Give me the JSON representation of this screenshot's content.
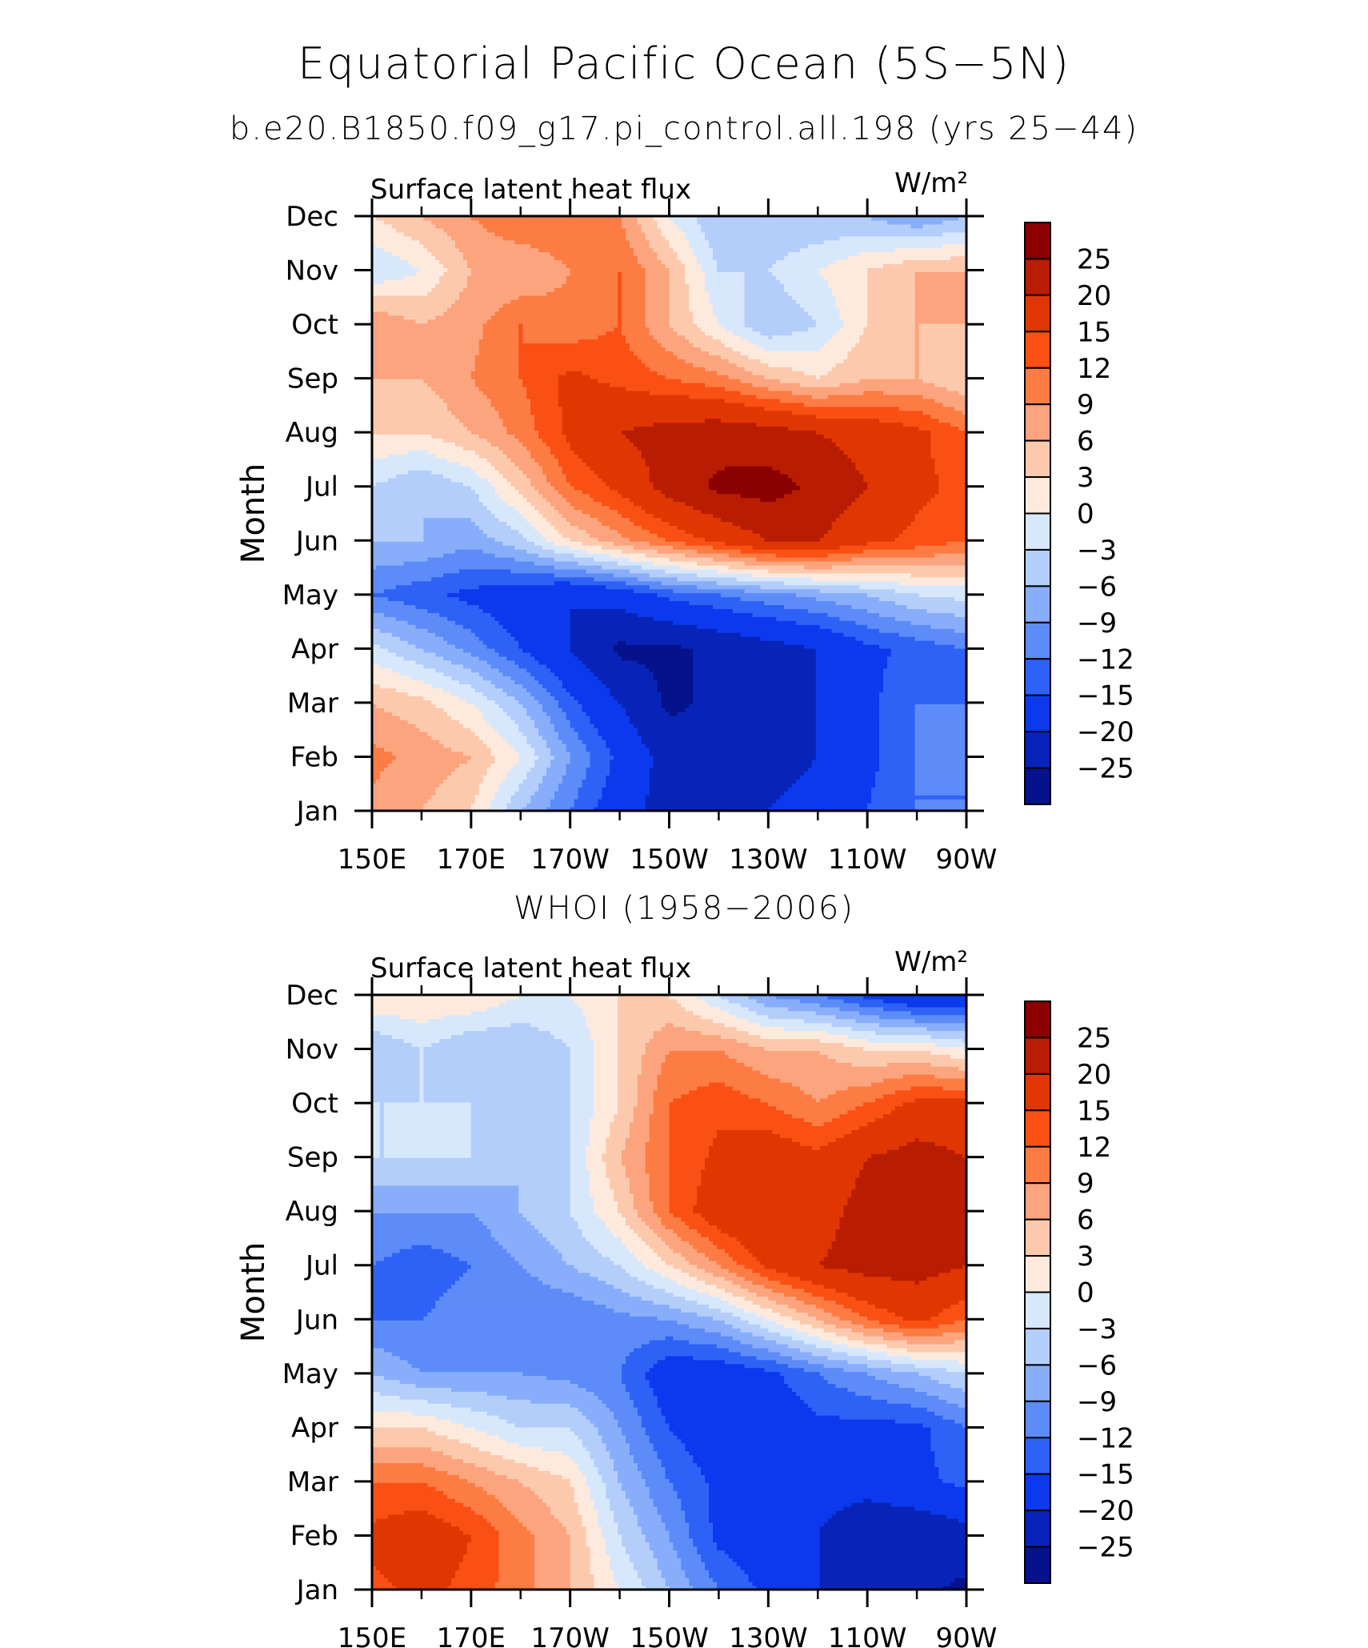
{
  "header": {
    "title": "Equatorial Pacific Ocean (5S−5N)",
    "subtitle": "b.e20.B1850.f09_g17.pi_control.all.198 (yrs 25−44)"
  },
  "chart_data": [
    {
      "type": "heatmap",
      "title": "",
      "left_label": "Surface latent heat flux",
      "right_label": "W/m²",
      "xlabel": "",
      "ylabel": "Month",
      "x_ticks": [
        "150E",
        "170E",
        "170W",
        "150W",
        "130W",
        "110W",
        "90W"
      ],
      "x_range": [
        150,
        270
      ],
      "y_ticks": [
        "Jan",
        "Feb",
        "Mar",
        "Apr",
        "May",
        "Jun",
        "Jul",
        "Aug",
        "Sep",
        "Oct",
        "Nov",
        "Dec"
      ],
      "colorbar_levels": [
        "25",
        "20",
        "15",
        "12",
        "9",
        "6",
        "3",
        "0",
        "−3",
        "−6",
        "−9",
        "−12",
        "−15",
        "−20",
        "−25"
      ],
      "colors": [
        "#8b0000",
        "#b81d02",
        "#e03602",
        "#fa5014",
        "#fc7c43",
        "#fca47e",
        "#fdc9ad",
        "#fdeadd",
        "#d8e8fc",
        "#b4cefc",
        "#88aefb",
        "#5d8cf9",
        "#2e62f6",
        "#0c39ee",
        "#0824b8",
        "#05128c"
      ],
      "x": [
        150,
        160,
        170,
        180,
        190,
        200,
        210,
        220,
        230,
        240,
        250,
        260,
        270
      ],
      "z": [
        [
          8,
          6,
          3,
          -6,
          -12,
          -18,
          -22,
          -22,
          -20,
          -18,
          -15,
          -12,
          -12
        ],
        [
          10,
          8,
          6,
          0,
          -9,
          -16,
          -22,
          -24,
          -22,
          -20,
          -16,
          -12,
          -12
        ],
        [
          6,
          4,
          0,
          -6,
          -14,
          -20,
          -26,
          -24,
          -22,
          -20,
          -16,
          -12,
          -12
        ],
        [
          -2,
          -6,
          -10,
          -15,
          -20,
          -26,
          -26,
          -24,
          -22,
          -20,
          -16,
          -14,
          -12
        ],
        [
          -12,
          -14,
          -16,
          -18,
          -20,
          -18,
          -14,
          -12,
          -10,
          -8,
          -6,
          -3,
          -2
        ],
        [
          -6,
          -6,
          -8,
          -4,
          3,
          8,
          12,
          16,
          20,
          20,
          16,
          14,
          12
        ],
        [
          -3,
          -6,
          -3,
          4,
          12,
          16,
          22,
          26,
          27,
          24,
          20,
          16,
          14
        ],
        [
          3,
          3,
          6,
          10,
          16,
          20,
          22,
          23,
          22,
          20,
          18,
          16,
          12
        ],
        [
          6,
          6,
          9,
          12,
          16,
          14,
          12,
          10,
          6,
          3,
          6,
          6,
          3
        ],
        [
          9,
          6,
          8,
          12,
          10,
          12,
          6,
          0,
          -6,
          -3,
          3,
          6,
          6
        ],
        [
          -3,
          0,
          6,
          6,
          9,
          12,
          6,
          -3,
          -3,
          0,
          3,
          6,
          6
        ],
        [
          3,
          6,
          9,
          12,
          12,
          9,
          0,
          -6,
          -6,
          -6,
          -6,
          -9,
          -6
        ]
      ]
    },
    {
      "type": "heatmap",
      "title": "WHOI (1958−2006)",
      "left_label": "Surface latent heat flux",
      "right_label": "W/m²",
      "xlabel": "",
      "ylabel": "Month",
      "x_ticks": [
        "150E",
        "170E",
        "170W",
        "150W",
        "130W",
        "110W",
        "90W"
      ],
      "x_range": [
        150,
        270
      ],
      "y_ticks": [
        "Jan",
        "Feb",
        "Mar",
        "Apr",
        "May",
        "Jun",
        "Jul",
        "Aug",
        "Sep",
        "Oct",
        "Nov",
        "Dec"
      ],
      "colorbar_levels": [
        "25",
        "20",
        "15",
        "12",
        "9",
        "6",
        "3",
        "0",
        "−3",
        "−6",
        "−9",
        "−12",
        "−15",
        "−20",
        "−25"
      ],
      "colors": [
        "#8b0000",
        "#b81d02",
        "#e03602",
        "#fa5014",
        "#fc7c43",
        "#fca47e",
        "#fdc9ad",
        "#fdeadd",
        "#d8e8fc",
        "#b4cefc",
        "#88aefb",
        "#5d8cf9",
        "#2e62f6",
        "#0c39ee",
        "#0824b8",
        "#05128c"
      ],
      "x": [
        150,
        160,
        170,
        180,
        190,
        200,
        210,
        220,
        230,
        240,
        250,
        260,
        270
      ],
      "z": [
        [
          14,
          16,
          14,
          10,
          6,
          0,
          -6,
          -12,
          -16,
          -20,
          -22,
          -24,
          -26
        ],
        [
          16,
          18,
          15,
          10,
          6,
          -3,
          -9,
          -16,
          -18,
          -20,
          -24,
          -24,
          -22
        ],
        [
          12,
          12,
          9,
          6,
          3,
          -6,
          -12,
          -16,
          -18,
          -18,
          -18,
          -16,
          -14
        ],
        [
          3,
          3,
          0,
          -3,
          -3,
          -9,
          -15,
          -18,
          -18,
          -16,
          -16,
          -16,
          -12
        ],
        [
          -6,
          -9,
          -9,
          -9,
          -10,
          -12,
          -18,
          -18,
          -16,
          -12,
          -9,
          -6,
          -3
        ],
        [
          -12,
          -12,
          -10,
          -12,
          -12,
          -10,
          -9,
          -6,
          0,
          6,
          12,
          16,
          12
        ],
        [
          -12,
          -14,
          -12,
          -9,
          -6,
          -3,
          3,
          9,
          16,
          20,
          22,
          22,
          20
        ],
        [
          -9,
          -9,
          -9,
          -6,
          -3,
          3,
          12,
          18,
          20,
          18,
          22,
          22,
          20
        ],
        [
          -3,
          -3,
          -3,
          -6,
          -3,
          6,
          12,
          16,
          18,
          16,
          20,
          22,
          20
        ],
        [
          -3,
          -3,
          -3,
          -6,
          -3,
          3,
          12,
          14,
          12,
          9,
          12,
          16,
          16
        ],
        [
          -6,
          -3,
          -6,
          -6,
          -3,
          3,
          9,
          9,
          6,
          6,
          3,
          3,
          0
        ],
        [
          3,
          3,
          3,
          0,
          0,
          3,
          3,
          -3,
          -9,
          -12,
          -16,
          -20,
          -20
        ]
      ]
    }
  ]
}
